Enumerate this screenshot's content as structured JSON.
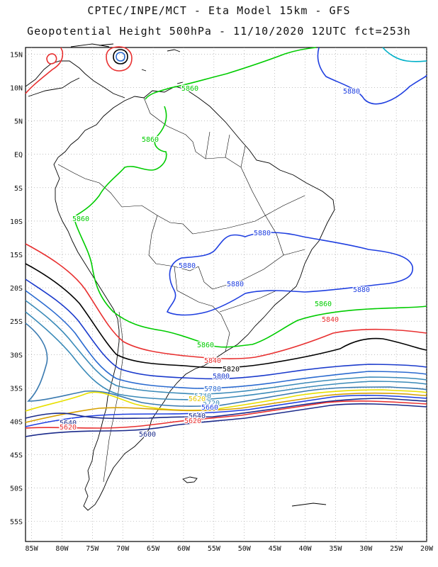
{
  "title": {
    "line1": "CPTEC/INPE/MCT -  Eta Model 15km - GFS",
    "line2": "Geopotential Height 500hPa - 11/10/2020 12UTC fct=253h"
  },
  "map": {
    "region": "South America",
    "lon_range": [
      -86,
      -20
    ],
    "lat_range": [
      -58,
      16
    ],
    "lon_ticks": [
      "85W",
      "80W",
      "75W",
      "70W",
      "65W",
      "60W",
      "55W",
      "50W",
      "45W",
      "40W",
      "35W",
      "30W",
      "25W",
      "20W"
    ],
    "lat_ticks": [
      "15N",
      "10N",
      "5N",
      "EQ",
      "5S",
      "10S",
      "15S",
      "20S",
      "25S",
      "30S",
      "35S",
      "40S",
      "45S",
      "50S",
      "55S"
    ],
    "grid": "dotted",
    "contour_interval": 20,
    "contour_labels": [
      {
        "text": "5860",
        "color": "#00cc00"
      },
      {
        "text": "5860",
        "color": "#00cc00"
      },
      {
        "text": "5860",
        "color": "#00cc00"
      },
      {
        "text": "5860",
        "color": "#00cc00"
      },
      {
        "text": "5860",
        "color": "#00cc00"
      },
      {
        "text": "5880",
        "color": "#1f3fe0"
      },
      {
        "text": "5880",
        "color": "#1f3fe0"
      },
      {
        "text": "5880",
        "color": "#1f3fe0"
      },
      {
        "text": "5880",
        "color": "#1f3fe0"
      },
      {
        "text": "5880",
        "color": "#1f3fe0"
      },
      {
        "text": "5840",
        "color": "#e83030"
      },
      {
        "text": "5840",
        "color": "#e83030"
      },
      {
        "text": "5820",
        "color": "#000000"
      },
      {
        "text": "5800",
        "color": "#1a3acc"
      },
      {
        "text": "5780",
        "color": "#2a6ad0"
      },
      {
        "text": "5740",
        "color": "#3a8ab8"
      },
      {
        "text": "5720",
        "color": "#3a8ab8"
      },
      {
        "text": "5620",
        "color": "#e8c800"
      },
      {
        "text": "5660",
        "color": "#1f3fe0"
      },
      {
        "text": "5640",
        "color": "#1a2a8a"
      },
      {
        "text": "5640",
        "color": "#1a2a8a"
      },
      {
        "text": "5620",
        "color": "#e83030"
      },
      {
        "text": "5620",
        "color": "#e83030"
      },
      {
        "text": "5600",
        "color": "#1a2a8a"
      }
    ]
  }
}
